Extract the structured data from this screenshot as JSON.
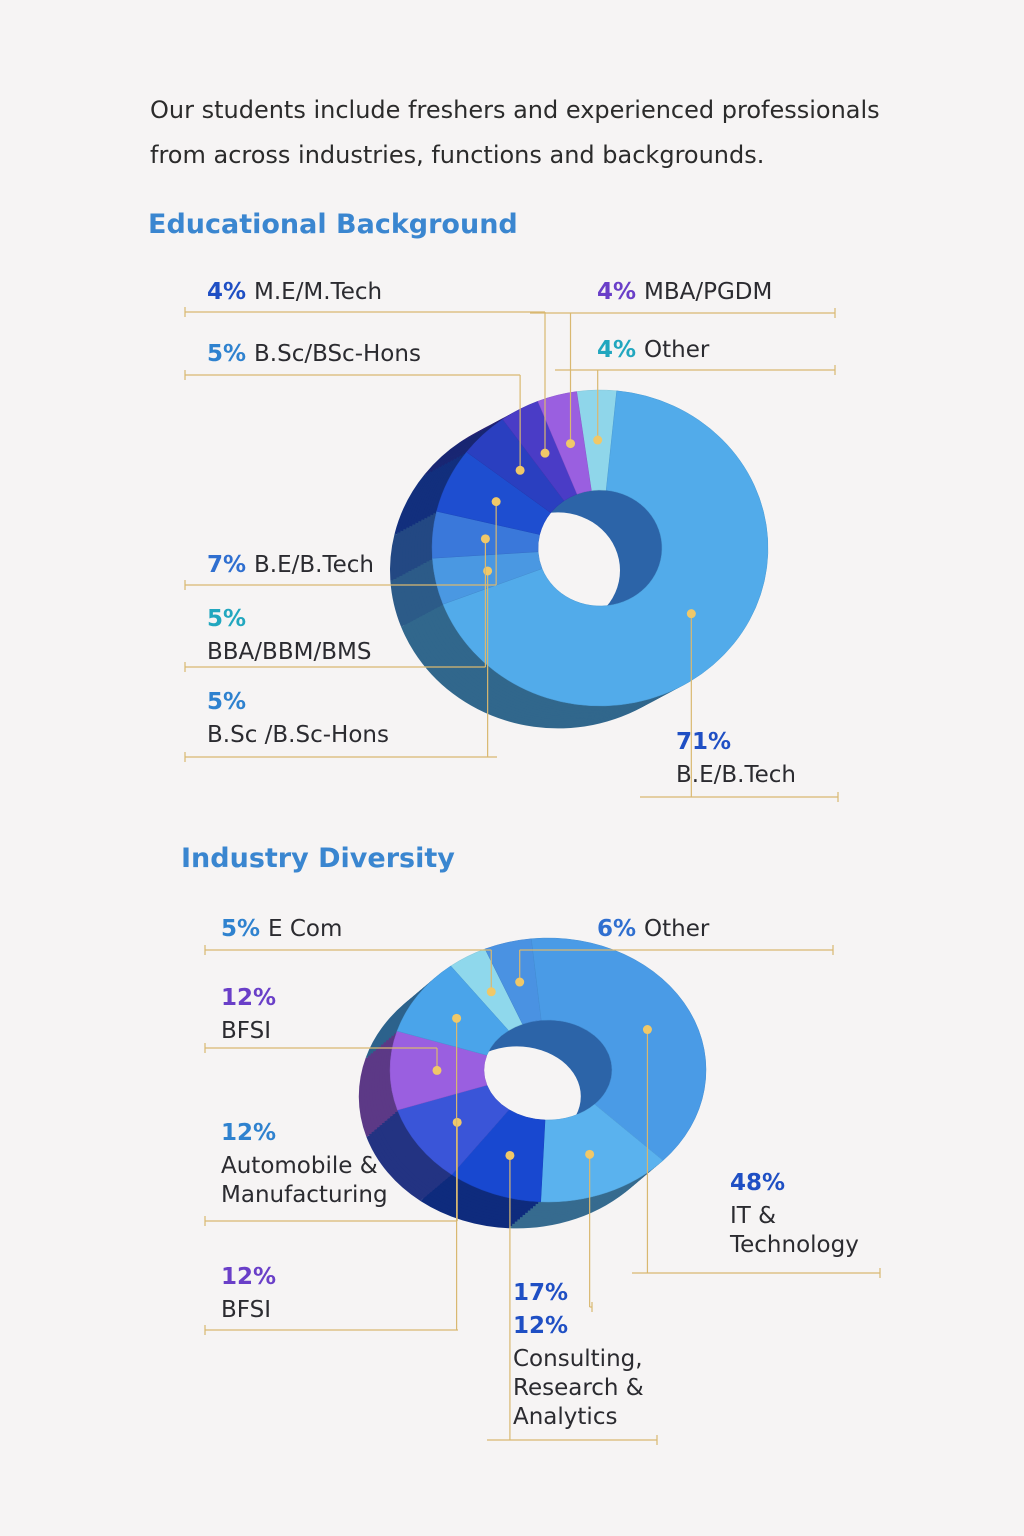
{
  "intro": [
    "Our students include freshers and experienced professionals",
    "from across industries, functions and backgrounds."
  ],
  "chart_data": [
    {
      "type": "donut",
      "title": "Educational Background",
      "categories": [
        "Other",
        "B.E/B.Tech",
        "B.Sc /B.Sc-Hons",
        "BBA/BBM/BMS",
        "B.E/B.Tech",
        "B.Sc/BSc-Hons",
        "M.E/M.Tech",
        "MBA/PGDM"
      ],
      "values": [
        4,
        71,
        5,
        5,
        7,
        5,
        4,
        4
      ],
      "value_labels": [
        "4%",
        "71%",
        "5%",
        "5%",
        "7%",
        "5%",
        "4%",
        "4%"
      ],
      "colors": [
        "#8fd6ea",
        "#52abea",
        "#4a98e2",
        "#3a78da",
        "#1e4ed0",
        "#2a3fc0",
        "#4a3cc6",
        "#9a5fe0"
      ]
    },
    {
      "type": "donut",
      "title": "Industry Diversity",
      "categories": [
        "E Com",
        "Other",
        "IT & Technology",
        null,
        "Consulting, Research & Analytics",
        "Automobile & Manufacturing",
        "BFSI",
        "BFSI"
      ],
      "values": [
        5,
        6,
        48,
        17,
        12,
        12,
        12,
        12
      ],
      "value_labels": [
        "5%",
        "6%",
        "48%",
        "17%",
        "12%",
        "12%",
        "12%",
        "12%"
      ],
      "colors": [
        "#8fd8ec",
        "#4a92e2",
        "#4a9be6",
        "#5ab2ee",
        "#1848d0",
        "#3a55d8",
        "#9a5fe0",
        "#4aa4ea"
      ]
    }
  ]
}
